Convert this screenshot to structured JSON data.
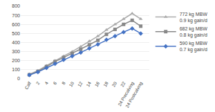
{
  "chart_data": {
    "type": "line",
    "categories": [
      "Calf",
      "2",
      "4",
      "6",
      "8",
      "10",
      "12",
      "14",
      "16",
      "18",
      "20",
      "22",
      "24 Precalving",
      "24 Postcalving"
    ],
    "series": [
      {
        "name": "772 kg MBW\n0.9 kg gain/d",
        "color": "#aaaaaa",
        "marker": "triangle-up",
        "values": [
          50,
          90,
          145,
          200,
          250,
          300,
          355,
          415,
          470,
          540,
          600,
          660,
          720,
          660
        ]
      },
      {
        "name": "682 kg MBW\n0.8 kg gain/d",
        "color": "#888888",
        "marker": "square",
        "values": [
          45,
          82,
          135,
          190,
          235,
          280,
          325,
          375,
          425,
          490,
          545,
          600,
          645,
          580
        ]
      },
      {
        "name": "590 kg MBW\n0.7 kg gain/d",
        "color": "#4472c4",
        "marker": "diamond",
        "values": [
          42,
          75,
          120,
          165,
          210,
          250,
          290,
          335,
          380,
          430,
          470,
          515,
          555,
          500
        ]
      }
    ],
    "ylim": [
      0,
      800
    ],
    "yticks": [
      0,
      100,
      200,
      300,
      400,
      500,
      600,
      700,
      800
    ],
    "grid": true,
    "legend": "right"
  }
}
